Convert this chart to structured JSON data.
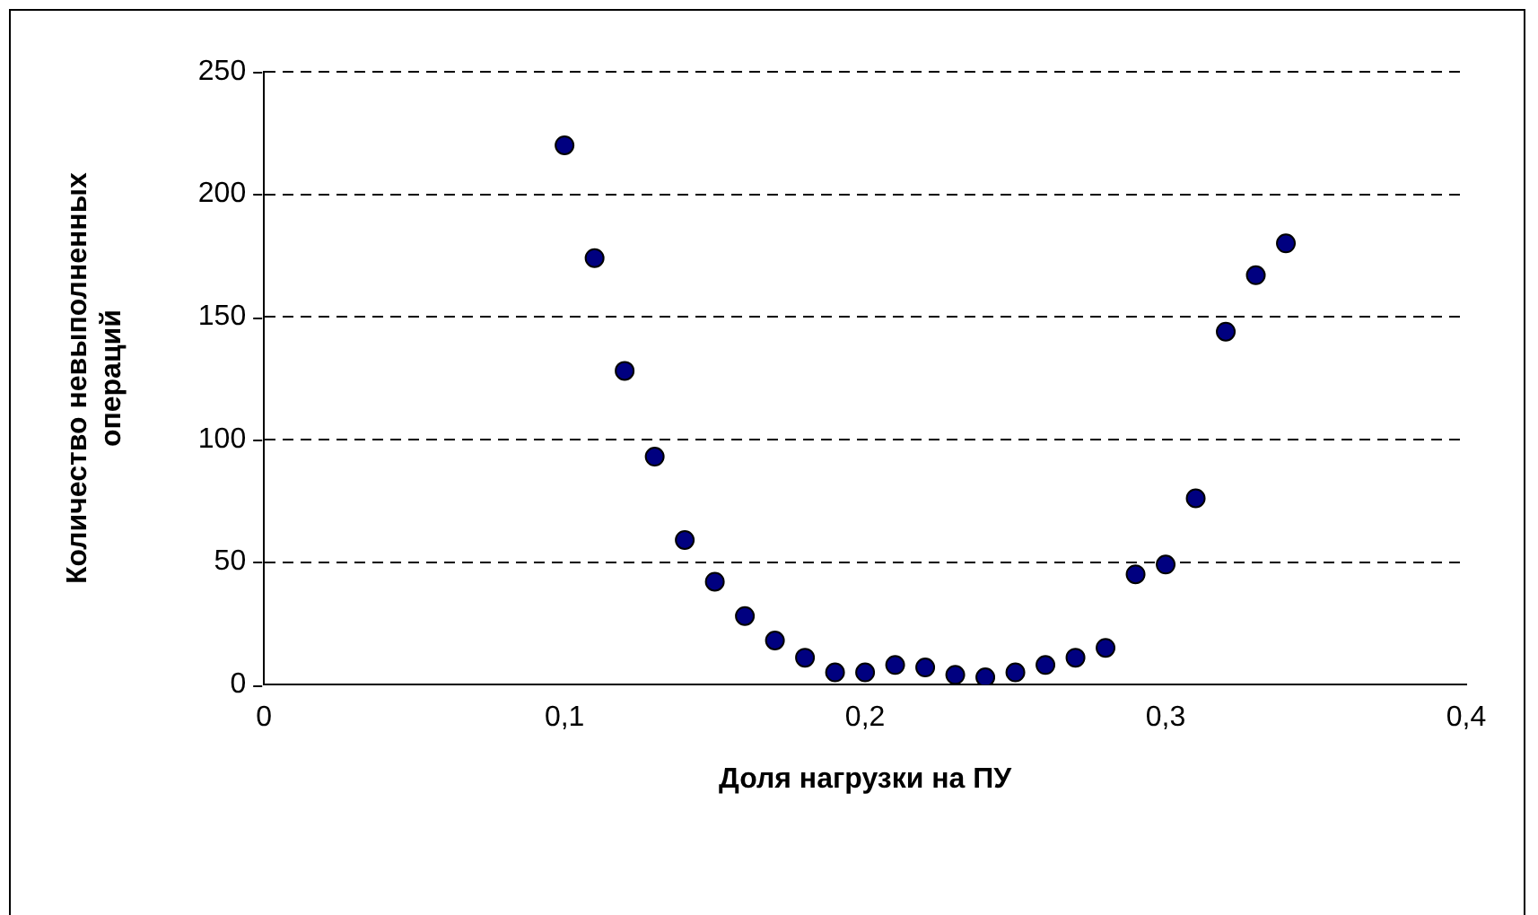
{
  "chart_data": {
    "type": "scatter",
    "xlabel": "Доля нагрузки на ПУ",
    "ylabel": "Количество невыполненных операций",
    "x": [
      0.1,
      0.11,
      0.12,
      0.13,
      0.14,
      0.15,
      0.16,
      0.17,
      0.18,
      0.19,
      0.2,
      0.21,
      0.22,
      0.23,
      0.24,
      0.25,
      0.26,
      0.27,
      0.28,
      0.29,
      0.3,
      0.31,
      0.32,
      0.33,
      0.34
    ],
    "series": [
      {
        "color": "#000080",
        "values": [
          220,
          174,
          128,
          93,
          59,
          42,
          28,
          18,
          11,
          5,
          5,
          8,
          7,
          4,
          3,
          5,
          8,
          11,
          15,
          45,
          49,
          76,
          144,
          167,
          180
        ]
      }
    ],
    "xlim": [
      0,
      0.4
    ],
    "xticks": [
      {
        "value": 0,
        "label": "0"
      },
      {
        "value": 0.1,
        "label": "0,1"
      },
      {
        "value": 0.2,
        "label": "0,2"
      },
      {
        "value": 0.3,
        "label": "0,3"
      },
      {
        "value": 0.4,
        "label": "0,4"
      }
    ],
    "ylim": [
      0,
      250
    ],
    "yticks": [
      0,
      50,
      100,
      150,
      200,
      250
    ],
    "grid": "y",
    "marker": "circle",
    "legend": false
  }
}
